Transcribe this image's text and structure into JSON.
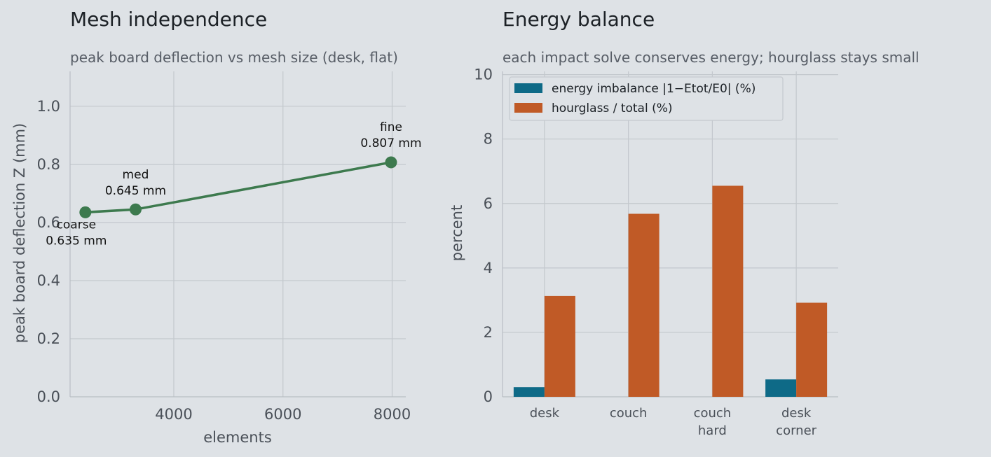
{
  "chart_data": [
    {
      "type": "line",
      "title": "Mesh independence",
      "subtitle": "peak board deflection vs mesh size (desk, flat)",
      "xlabel": "elements",
      "ylabel": "peak board deflection Z (mm)",
      "xlim": [
        2100,
        8250
      ],
      "ylim": [
        0,
        1.12
      ],
      "xticks": [
        4000,
        6000,
        8000
      ],
      "yticks": [
        0.0,
        0.2,
        0.4,
        0.6,
        0.8,
        1.0
      ],
      "grid": true,
      "color": "#3d7a4e",
      "points": [
        {
          "x": 2380,
          "y": 0.635,
          "label": "coarse",
          "value_label": "0.635 mm"
        },
        {
          "x": 3300,
          "y": 0.645,
          "label": "med",
          "value_label": "0.645 mm"
        },
        {
          "x": 7980,
          "y": 0.807,
          "label": "fine",
          "value_label": "0.807 mm"
        }
      ]
    },
    {
      "type": "bar",
      "title": "Energy balance",
      "subtitle": "each impact solve conserves energy; hourglass stays small",
      "xlabel": "",
      "ylabel": "percent",
      "ylim": [
        0,
        10.1
      ],
      "yticks": [
        0,
        2,
        4,
        6,
        8,
        10
      ],
      "grid": true,
      "legend": "top-left",
      "categories": [
        [
          "desk"
        ],
        [
          "couch"
        ],
        [
          "couch",
          "hard"
        ],
        [
          "desk",
          "corner"
        ]
      ],
      "series": [
        {
          "name": "energy imbalance |1−Etot/E0| (%)",
          "color": "#0e6a87",
          "values": [
            0.3,
            0.0,
            0.0,
            0.54
          ]
        },
        {
          "name": "hourglass / total (%)",
          "color": "#c05a26",
          "values": [
            3.13,
            5.68,
            6.55,
            2.92
          ]
        }
      ]
    }
  ]
}
